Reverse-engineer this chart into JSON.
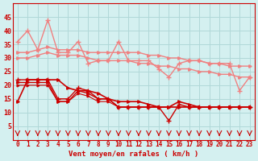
{
  "xlabel": "Vent moyen/en rafales ( km/h )",
  "bg_color": "#d4f0f0",
  "grid_color": "#b0d8d8",
  "x_values": [
    0,
    1,
    2,
    3,
    4,
    5,
    6,
    7,
    8,
    9,
    10,
    11,
    12,
    13,
    14,
    15,
    16,
    17,
    18,
    19,
    20,
    21,
    22,
    23
  ],
  "line1_y": [
    32,
    32,
    33,
    34,
    33,
    33,
    33,
    32,
    32,
    32,
    32,
    32,
    32,
    31,
    31,
    30,
    30,
    29,
    29,
    28,
    28,
    27,
    27,
    27
  ],
  "line2_y": [
    30,
    30,
    31,
    32,
    31,
    31,
    31,
    30,
    29,
    29,
    29,
    29,
    28,
    28,
    27,
    27,
    26,
    26,
    25,
    25,
    24,
    24,
    23,
    23
  ],
  "line3_y": [
    36,
    40,
    33,
    44,
    32,
    32,
    36,
    28,
    29,
    29,
    36,
    29,
    29,
    29,
    26,
    23,
    28,
    29,
    29,
    28,
    28,
    28,
    18,
    23
  ],
  "line4_y": [
    14,
    22,
    22,
    22,
    22,
    19,
    18,
    18,
    17,
    15,
    14,
    14,
    14,
    13,
    12,
    12,
    14,
    13,
    12,
    12,
    12,
    12,
    12,
    12
  ],
  "line5_y": [
    22,
    22,
    22,
    22,
    15,
    15,
    19,
    18,
    15,
    15,
    12,
    12,
    12,
    12,
    12,
    7,
    13,
    12,
    12,
    12,
    12,
    12,
    12,
    12
  ],
  "line6_y": [
    21,
    21,
    21,
    21,
    14,
    14,
    18,
    17,
    15,
    15,
    12,
    12,
    12,
    12,
    12,
    12,
    12,
    12,
    12,
    12,
    12,
    12,
    12,
    12
  ],
  "line7_y": [
    20,
    20,
    20,
    20,
    14,
    14,
    17,
    16,
    14,
    14,
    12,
    12,
    12,
    12,
    12,
    12,
    12,
    12,
    12,
    12,
    12,
    12,
    12,
    12
  ],
  "color_light": "#f08080",
  "color_dark": "#cc0000",
  "ylim": [
    0,
    50
  ],
  "xlim": [
    0,
    23
  ],
  "yticks": [
    5,
    10,
    15,
    20,
    25,
    30,
    35,
    40,
    45
  ],
  "xticks": [
    0,
    1,
    2,
    3,
    4,
    5,
    6,
    7,
    8,
    9,
    10,
    11,
    12,
    13,
    14,
    15,
    16,
    17,
    18,
    19,
    20,
    21,
    22,
    23
  ]
}
